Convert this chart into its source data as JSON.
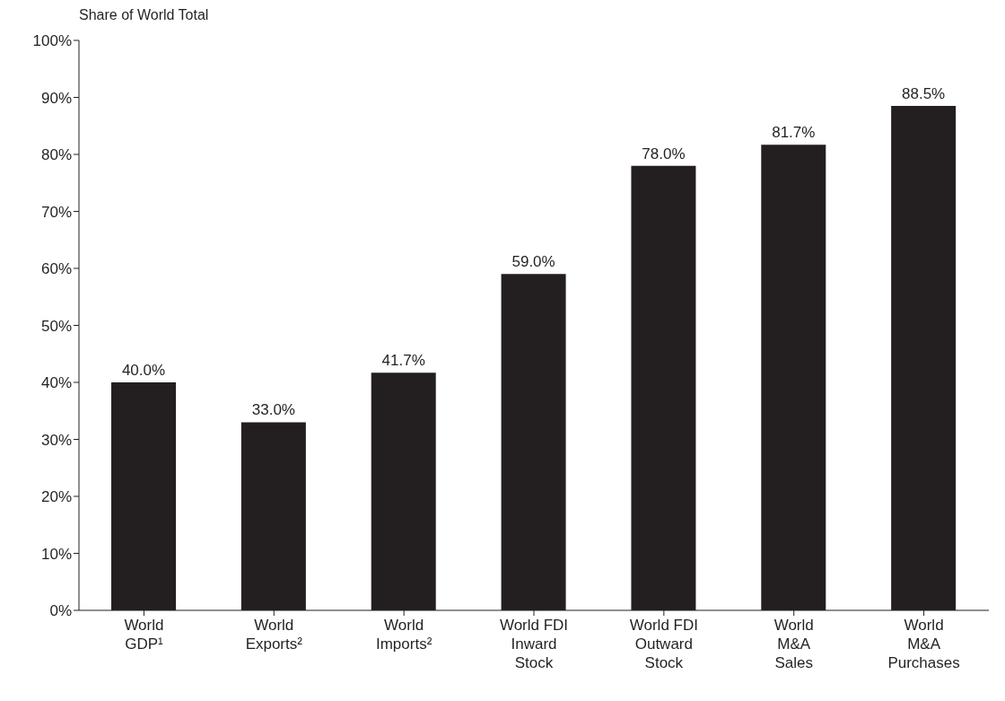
{
  "chart_data": {
    "type": "bar",
    "ylabel": "Share of World Total",
    "categories": [
      "World\nGDP¹",
      "World\nExports²",
      "World\nImports²",
      "World FDI\nInward\nStock",
      "World FDI\nOutward\nStock",
      "World\nM&A\nSales",
      "World\nM&A\nPurchases"
    ],
    "values": [
      40.0,
      33.0,
      41.7,
      59.0,
      78.0,
      81.7,
      88.5
    ],
    "value_labels": [
      "40.0%",
      "33.0%",
      "41.7%",
      "59.0%",
      "78.0%",
      "81.7%",
      "88.5%"
    ],
    "color": "#231f20",
    "ylim": [
      0,
      100
    ],
    "yticks": [
      {
        "value": 0,
        "label": "0%"
      },
      {
        "value": 10,
        "label": "10%"
      },
      {
        "value": 20,
        "label": "20%"
      },
      {
        "value": 30,
        "label": "30%"
      },
      {
        "value": 40,
        "label": "40%"
      },
      {
        "value": 50,
        "label": "50%"
      },
      {
        "value": 60,
        "label": "60%"
      },
      {
        "value": 70,
        "label": "70%"
      },
      {
        "value": 80,
        "label": "80%"
      },
      {
        "value": 90,
        "label": "90%"
      },
      {
        "value": 100,
        "label": "100%"
      }
    ],
    "grid": false,
    "legend": false
  }
}
